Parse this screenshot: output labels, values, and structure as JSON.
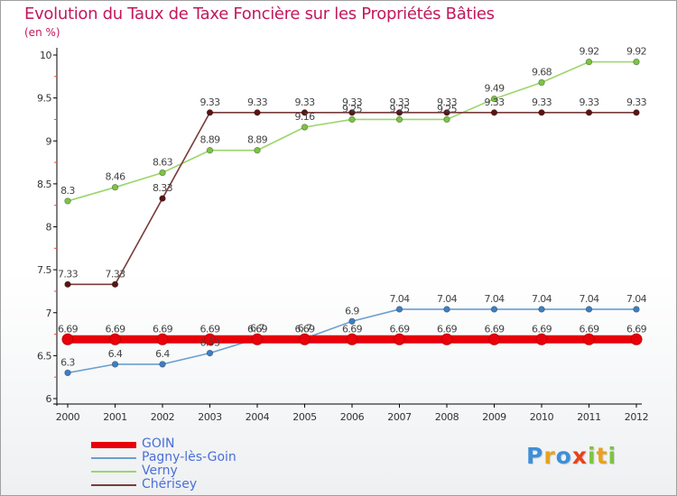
{
  "chart_data": {
    "type": "line",
    "title": "Evolution du Taux de Taxe Foncière sur les Propriétés Bâties",
    "unit_label": "(en %)",
    "xlabel": "",
    "ylabel": "",
    "categories": [
      "2000",
      "2001",
      "2002",
      "2003",
      "2004",
      "2005",
      "2006",
      "2007",
      "2008",
      "2009",
      "2010",
      "2011",
      "2012"
    ],
    "ylim": [
      6,
      10
    ],
    "yticks": [
      6,
      6.5,
      7,
      7.5,
      8,
      8.5,
      9,
      9.5,
      10
    ],
    "ytick_labels": [
      "6",
      "6.5",
      "7",
      "7.5",
      "8",
      "8.5",
      "9",
      "9.5",
      "10"
    ],
    "grid": false,
    "legend_position": "bottom-left",
    "series": [
      {
        "name": "GOIN",
        "color": "#e8000a",
        "marker_color": "#e8000a",
        "values": [
          6.69,
          6.69,
          6.69,
          6.69,
          6.69,
          6.69,
          6.69,
          6.69,
          6.69,
          6.69,
          6.69,
          6.69,
          6.69
        ],
        "labels": [
          "6.69",
          "6.69",
          "6.69",
          "6.69",
          "6.69",
          "6.69",
          "6.69",
          "6.69",
          "6.69",
          "6.69",
          "6.69",
          "6.69",
          "6.69"
        ]
      },
      {
        "name": "Pagny-lès-Goin",
        "color": "#6a9fcf",
        "marker_color": "#3d7fc4",
        "values": [
          6.3,
          6.4,
          6.4,
          6.53,
          6.7,
          6.7,
          6.9,
          7.04,
          7.04,
          7.04,
          7.04,
          7.04,
          7.04
        ],
        "labels": [
          "6.3",
          "6.4",
          "6.4",
          "6.53",
          "6.7",
          "6.7",
          "6.9",
          "7.04",
          "7.04",
          "7.04",
          "7.04",
          "7.04",
          "7.04"
        ]
      },
      {
        "name": "Verny",
        "color": "#9ad66a",
        "marker_color": "#7cc443",
        "values": [
          8.3,
          8.46,
          8.63,
          8.89,
          8.89,
          9.16,
          9.25,
          9.25,
          9.25,
          9.49,
          9.68,
          9.92,
          9.92
        ],
        "labels": [
          "8.3",
          "8.46",
          "8.63",
          "8.89",
          "8.89",
          "9.16",
          "9.25",
          "9.25",
          "9.25",
          "9.49",
          "9.68",
          "9.92",
          "9.92"
        ]
      },
      {
        "name": "Chérisey",
        "color": "#7a3b3b",
        "marker_color": "#5a1414",
        "values": [
          7.33,
          7.33,
          8.33,
          9.33,
          9.33,
          9.33,
          9.33,
          9.33,
          9.33,
          9.33,
          9.33,
          9.33,
          9.33
        ],
        "labels": [
          "7.33",
          "7.33",
          "8.33",
          "9.33",
          "9.33",
          "9.33",
          "9.33",
          "9.33",
          "9.33",
          "9.33",
          "9.33",
          "9.33",
          "9.33"
        ]
      }
    ]
  },
  "logo": {
    "letters": [
      "P",
      "r",
      "o",
      "x",
      "i",
      "t",
      "i"
    ],
    "colors": [
      "#3d8fd8",
      "#e8a21c",
      "#3d8fd8",
      "#e8421c",
      "#7cc443",
      "#e8a21c",
      "#7cc443"
    ]
  }
}
